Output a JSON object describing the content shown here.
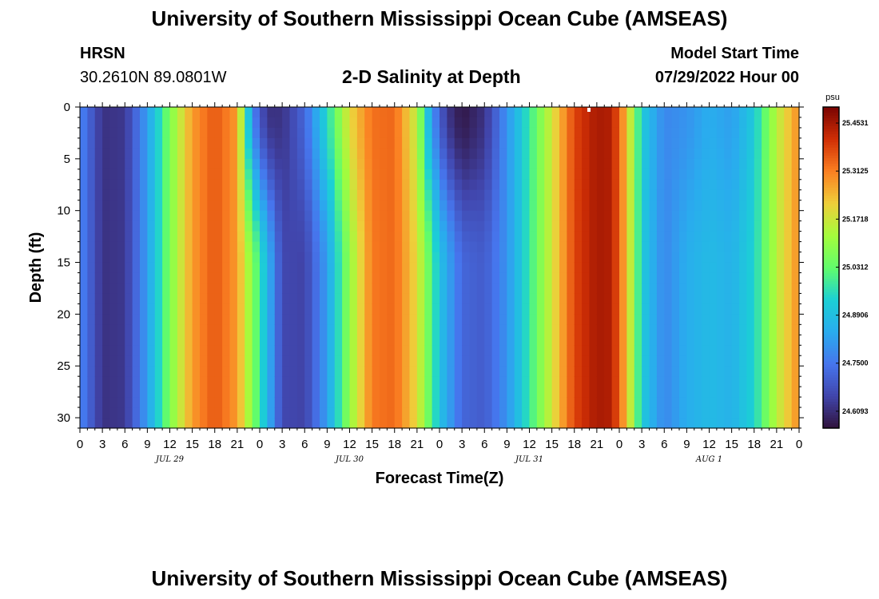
{
  "title_top": "University of Southern Mississippi Ocean Cube (AMSEAS)",
  "title_bottom": "University of Southern Mississippi Ocean Cube (AMSEAS)",
  "station": {
    "name": "HRSN",
    "coords": "30.2610N  89.0801W"
  },
  "model": {
    "label": "Model Start Time",
    "start": "07/29/2022 Hour 00"
  },
  "colors": {
    "background": "#ffffff",
    "axis": "#000000"
  },
  "chart_data": {
    "type": "heatmap",
    "title": "2-D Salinity at Depth",
    "xlabel": "Forecast Time(Z)",
    "ylabel": "Depth (ft)",
    "x_tick_labels": [
      "0",
      "3",
      "6",
      "9",
      "12",
      "15",
      "18",
      "21",
      "0",
      "3",
      "6",
      "9",
      "12",
      "15",
      "18",
      "21",
      "0",
      "3",
      "6",
      "9",
      "12",
      "15",
      "18",
      "21",
      "0",
      "3",
      "6",
      "9",
      "12",
      "15",
      "18",
      "21",
      "0"
    ],
    "day_labels": [
      {
        "label": "JUL 29",
        "hour": 12
      },
      {
        "label": "JUL 30",
        "hour": 36
      },
      {
        "label": "JUL 31",
        "hour": 60
      },
      {
        "label": "AUG 1",
        "hour": 84
      }
    ],
    "y_ticks": [
      0,
      5,
      10,
      15,
      20,
      25,
      30
    ],
    "xlim_hours": [
      0,
      96
    ],
    "ylim_ft": [
      0,
      31
    ],
    "y_inverted": true,
    "colorbar": {
      "unit": "psu",
      "min": 24.56,
      "max": 25.5,
      "tick_labels": [
        "25.4531",
        "25.3125",
        "25.1718",
        "25.0312",
        "24.8906",
        "24.7500",
        "24.6093"
      ],
      "tick_values": [
        25.4531,
        25.3125,
        25.1718,
        25.0312,
        24.8906,
        24.75,
        24.6093
      ],
      "colormap": "turbo"
    },
    "surface_salinity_by_hour": [
      [
        0,
        24.78
      ],
      [
        3,
        24.62
      ],
      [
        6,
        24.63
      ],
      [
        9,
        24.82
      ],
      [
        12,
        25.07
      ],
      [
        15,
        25.28
      ],
      [
        18,
        25.36
      ],
      [
        21,
        25.28
      ],
      [
        23,
        24.78
      ],
      [
        25,
        24.62
      ],
      [
        27,
        24.62
      ],
      [
        30,
        24.72
      ],
      [
        33,
        24.95
      ],
      [
        36,
        25.2
      ],
      [
        39,
        25.33
      ],
      [
        42,
        25.34
      ],
      [
        45,
        25.15
      ],
      [
        47,
        24.8
      ],
      [
        49,
        24.63
      ],
      [
        51,
        24.57
      ],
      [
        54,
        24.62
      ],
      [
        57,
        24.8
      ],
      [
        60,
        24.98
      ],
      [
        63,
        25.18
      ],
      [
        66,
        25.38
      ],
      [
        69,
        25.45
      ],
      [
        71,
        25.44
      ],
      [
        73,
        25.24
      ],
      [
        75,
        24.92
      ],
      [
        78,
        24.78
      ],
      [
        81,
        24.8
      ],
      [
        84,
        24.85
      ],
      [
        87,
        24.82
      ],
      [
        90,
        24.92
      ],
      [
        93,
        25.15
      ],
      [
        96,
        25.3
      ]
    ],
    "deep_salinity_by_hour": [
      [
        0,
        24.78
      ],
      [
        3,
        24.62
      ],
      [
        6,
        24.63
      ],
      [
        9,
        24.82
      ],
      [
        12,
        25.07
      ],
      [
        15,
        25.28
      ],
      [
        18,
        25.36
      ],
      [
        21,
        25.28
      ],
      [
        24,
        24.98
      ],
      [
        27,
        24.66
      ],
      [
        30,
        24.65
      ],
      [
        33,
        24.82
      ],
      [
        36,
        25.1
      ],
      [
        39,
        25.32
      ],
      [
        42,
        25.34
      ],
      [
        45,
        25.2
      ],
      [
        48,
        24.9
      ],
      [
        51,
        24.72
      ],
      [
        54,
        24.7
      ],
      [
        57,
        24.8
      ],
      [
        60,
        24.98
      ],
      [
        63,
        25.18
      ],
      [
        66,
        25.38
      ],
      [
        69,
        25.45
      ],
      [
        71,
        25.44
      ],
      [
        73,
        25.24
      ],
      [
        75,
        24.92
      ],
      [
        78,
        24.78
      ],
      [
        81,
        24.85
      ],
      [
        84,
        24.88
      ],
      [
        87,
        24.86
      ],
      [
        90,
        24.94
      ],
      [
        93,
        25.15
      ],
      [
        96,
        25.3
      ]
    ]
  }
}
